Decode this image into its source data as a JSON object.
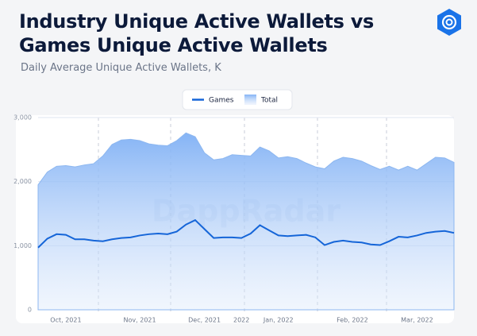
{
  "chart_data": {
    "type": "area-line",
    "title": "Industry Unique Active Wallets vs Games Unique Active Wallets",
    "subtitle": "Daily Average Unique Active Wallets, K",
    "watermark": "DappRadar",
    "categories": [
      null,
      null,
      null,
      "Oct, 2021",
      null,
      null,
      null,
      null,
      null,
      null,
      null,
      "Nov, 2021",
      null,
      null,
      null,
      null,
      null,
      null,
      "Dec, 2021",
      null,
      null,
      null,
      "2022",
      null,
      null,
      null,
      "Jan, 2022",
      null,
      null,
      null,
      null,
      null,
      null,
      null,
      "Feb, 2022",
      null,
      null,
      null,
      null,
      null,
      null,
      "Mar, 2022",
      null,
      null,
      null,
      null
    ],
    "series": [
      {
        "name": "Games",
        "color": "#1565d8",
        "values": [
          970,
          1110,
          1180,
          1170,
          1100,
          1100,
          1080,
          1070,
          1100,
          1120,
          1130,
          1160,
          1180,
          1190,
          1180,
          1220,
          1330,
          1400,
          1260,
          1120,
          1130,
          1130,
          1120,
          1190,
          1320,
          1240,
          1160,
          1150,
          1160,
          1170,
          1130,
          1010,
          1060,
          1080,
          1060,
          1050,
          1020,
          1010,
          1070,
          1140,
          1130,
          1160,
          1200,
          1220,
          1230,
          1200
        ]
      },
      {
        "name": "Total",
        "color": "#7fb0f5",
        "values": [
          1950,
          2150,
          2240,
          2250,
          2230,
          2260,
          2280,
          2400,
          2580,
          2650,
          2660,
          2640,
          2590,
          2570,
          2560,
          2640,
          2760,
          2700,
          2450,
          2340,
          2360,
          2420,
          2410,
          2400,
          2540,
          2480,
          2370,
          2390,
          2360,
          2290,
          2230,
          2200,
          2320,
          2380,
          2360,
          2320,
          2250,
          2190,
          2240,
          2180,
          2240,
          2180,
          2280,
          2380,
          2370,
          2300
        ]
      }
    ],
    "ylim": [
      0,
      3000
    ],
    "yticks": [
      0,
      {
        "value": 1000,
        "label": "1,000"
      },
      {
        "value": 2000,
        "label": "2,000"
      },
      {
        "value": 3000,
        "label": "3,000"
      }
    ],
    "grid": true
  }
}
